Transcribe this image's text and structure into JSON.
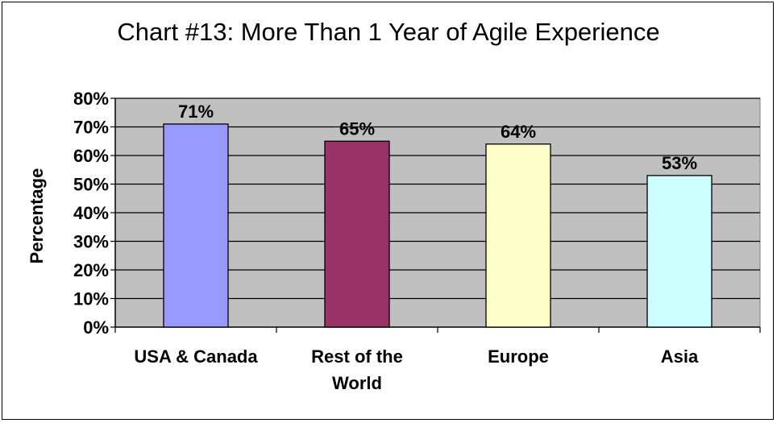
{
  "chart_data": {
    "type": "bar",
    "title": "Chart #13: More Than 1 Year of Agile Experience",
    "ylabel": "Percentage",
    "xlabel": "",
    "categories": [
      [
        "USA & Canada"
      ],
      [
        "Rest of the",
        "World"
      ],
      [
        "Europe"
      ],
      [
        "Asia"
      ]
    ],
    "values": [
      71,
      65,
      64,
      53
    ],
    "data_labels": [
      "71%",
      "65%",
      "64%",
      "53%"
    ],
    "colors": [
      "#9999FF",
      "#993366",
      "#FFFFCC",
      "#CCFFFF"
    ],
    "ylim": [
      0,
      80
    ],
    "yticks": [
      "0%",
      "10%",
      "20%",
      "30%",
      "40%",
      "50%",
      "60%",
      "70%",
      "80%"
    ],
    "grid": true,
    "plot_background": "#C0C0C0",
    "legend": "none"
  }
}
